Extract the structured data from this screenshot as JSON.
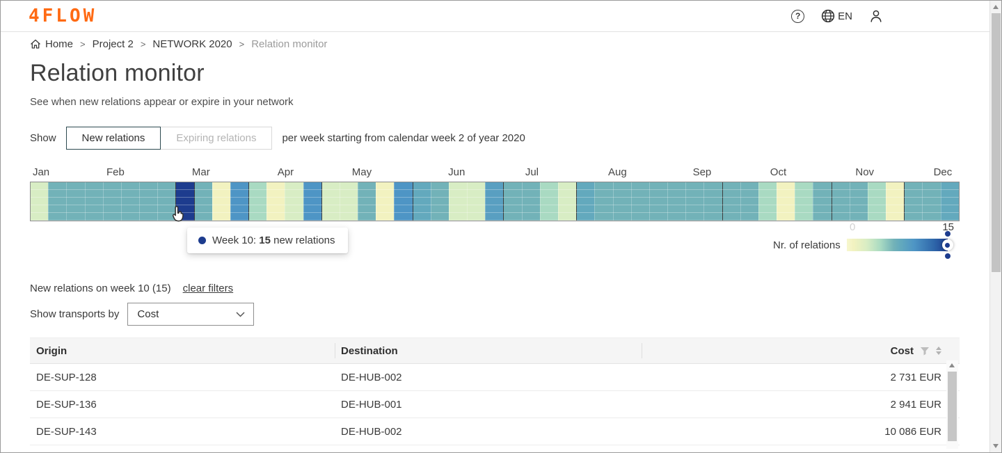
{
  "theme": {
    "accent": "#FF6A13",
    "navy": "#1d3c8e",
    "toggle_active_border": "#2c4a50"
  },
  "header": {
    "logo": "4FLOW",
    "help_label": "?",
    "language": "EN"
  },
  "breadcrumb": {
    "items": [
      {
        "label": "Home"
      },
      {
        "label": "Project 2"
      },
      {
        "label": "NETWORK 2020"
      },
      {
        "label": "Relation monitor"
      }
    ]
  },
  "page": {
    "title": "Relation monitor",
    "subtitle": "See when new relations appear or expire in your network"
  },
  "controls": {
    "show_label": "Show",
    "toggle_new": "New relations",
    "toggle_expiring": "Expiring relations",
    "period_text": "per week starting from calendar week 2 of year 2020"
  },
  "chart_data": {
    "type": "heatmap",
    "title": "New relations per week",
    "year": 2020,
    "first_week": 2,
    "weeks": [
      2,
      3,
      4,
      5,
      6,
      7,
      8,
      9,
      10,
      11,
      12,
      13,
      14,
      15,
      16,
      17,
      18,
      19,
      20,
      21,
      22,
      23,
      24,
      25,
      26,
      27,
      28,
      29,
      30,
      31,
      32,
      33,
      34,
      35,
      36,
      37,
      38,
      39,
      40,
      41,
      42,
      43,
      44,
      45,
      46,
      47,
      48,
      49,
      50,
      51,
      52
    ],
    "values": [
      3,
      7,
      7,
      7,
      7,
      7,
      7,
      7,
      15,
      7,
      1,
      10,
      5,
      1,
      3,
      10,
      3,
      3,
      7,
      1,
      10,
      8,
      7,
      3,
      3,
      9,
      7,
      7,
      5,
      3,
      8,
      7,
      7,
      7,
      7,
      7,
      7,
      7,
      7,
      7,
      5,
      1,
      5,
      7,
      7,
      7,
      5,
      1,
      7,
      7,
      8
    ],
    "value_range": [
      0,
      15
    ],
    "selected_week": {
      "week": 10,
      "value": 15
    },
    "months": [
      {
        "label": "Jan",
        "left_pct": 1.2
      },
      {
        "label": "Feb",
        "left_pct": 9.2
      },
      {
        "label": "Mar",
        "left_pct": 18.4
      },
      {
        "label": "Apr",
        "left_pct": 27.5
      },
      {
        "label": "May",
        "left_pct": 35.7
      },
      {
        "label": "Jun",
        "left_pct": 45.9
      },
      {
        "label": "Jul",
        "left_pct": 54.0
      },
      {
        "label": "Aug",
        "left_pct": 63.2
      },
      {
        "label": "Sep",
        "left_pct": 72.3
      },
      {
        "label": "Oct",
        "left_pct": 80.5
      },
      {
        "label": "Nov",
        "left_pct": 89.8
      },
      {
        "label": "Dec",
        "left_pct": 98.2
      }
    ],
    "scale_stops": [
      {
        "value": 0,
        "color": "#f7f7cf"
      },
      {
        "value": 1,
        "color": "#f2f2c0"
      },
      {
        "value": 3,
        "color": "#d8edc4"
      },
      {
        "value": 5,
        "color": "#a9dac2"
      },
      {
        "value": 7,
        "color": "#72b2b8"
      },
      {
        "value": 8,
        "color": "#63a9bd"
      },
      {
        "value": 10,
        "color": "#4e95c5"
      },
      {
        "value": 13,
        "color": "#2e66a9"
      },
      {
        "value": 15,
        "color": "#1d3c8e"
      }
    ],
    "group_outline_weeks": [
      10,
      11,
      14,
      18,
      23,
      28,
      32,
      40,
      46,
      50
    ],
    "legend_position": "bottom-right"
  },
  "tooltip": {
    "label": "Week 10:",
    "value": "15",
    "suffix": "new relations"
  },
  "legend": {
    "label": "Nr. of relations",
    "min": "0",
    "max": "15"
  },
  "filters": {
    "summary": "New relations on week 10 (15)",
    "clear_label": "clear filters",
    "transports_label": "Show transports by",
    "selected_option": "Cost"
  },
  "table": {
    "headers": {
      "origin": "Origin",
      "destination": "Destination",
      "cost": "Cost"
    },
    "rows": [
      {
        "origin": "DE-SUP-128",
        "destination": "DE-HUB-002",
        "cost": "2 731 EUR"
      },
      {
        "origin": "DE-SUP-136",
        "destination": "DE-HUB-001",
        "cost": "2 941 EUR"
      },
      {
        "origin": "DE-SUP-143",
        "destination": "DE-HUB-002",
        "cost": "10 086 EUR"
      }
    ]
  }
}
